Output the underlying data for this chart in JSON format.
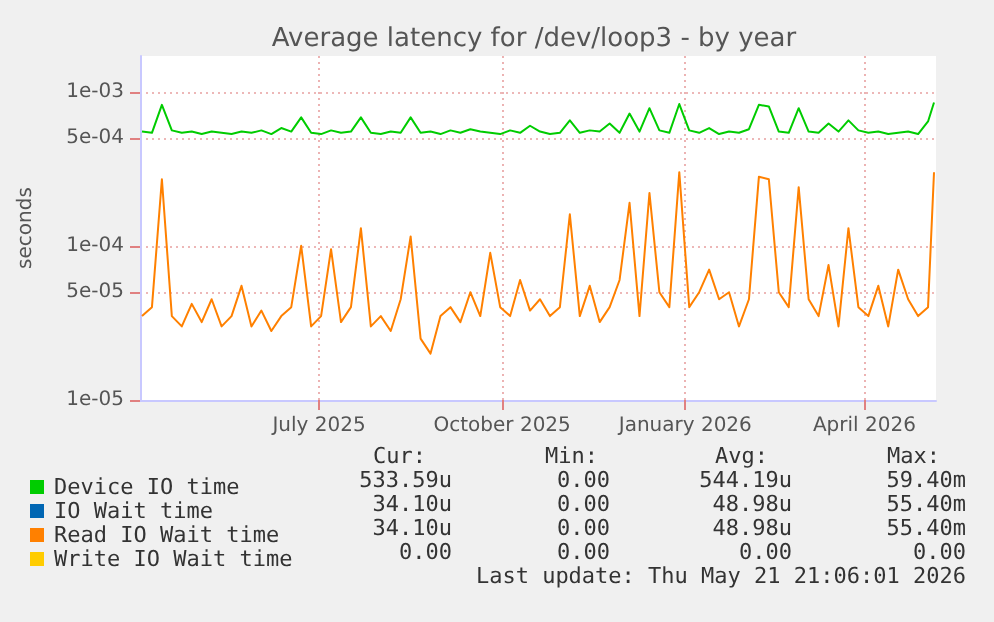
{
  "chart_data": {
    "type": "line",
    "title": "Average latency for /dev/loop3 - by year",
    "ylabel": "seconds",
    "x": [
      "2025-04-18",
      "2025-04-23",
      "2025-04-28",
      "2025-05-03",
      "2025-05-08",
      "2025-05-13",
      "2025-05-18",
      "2025-05-23",
      "2025-05-28",
      "2025-06-02",
      "2025-06-07",
      "2025-06-12",
      "2025-06-17",
      "2025-06-22",
      "2025-06-27",
      "2025-07-02",
      "2025-07-07",
      "2025-07-12",
      "2025-07-17",
      "2025-07-22",
      "2025-07-27",
      "2025-08-01",
      "2025-08-06",
      "2025-08-11",
      "2025-08-16",
      "2025-08-21",
      "2025-08-26",
      "2025-08-31",
      "2025-09-05",
      "2025-09-10",
      "2025-09-15",
      "2025-09-20",
      "2025-09-25",
      "2025-09-30",
      "2025-10-05",
      "2025-10-10",
      "2025-10-15",
      "2025-10-20",
      "2025-10-25",
      "2025-10-30",
      "2025-11-04",
      "2025-11-09",
      "2025-11-14",
      "2025-11-19",
      "2025-11-24",
      "2025-11-29",
      "2025-12-04",
      "2025-12-09",
      "2025-12-14",
      "2025-12-19",
      "2025-12-24",
      "2025-12-29",
      "2026-01-03",
      "2026-01-08",
      "2026-01-13",
      "2026-01-18",
      "2026-01-23",
      "2026-01-28",
      "2026-02-02",
      "2026-02-07",
      "2026-02-12",
      "2026-02-17",
      "2026-02-22",
      "2026-02-27",
      "2026-03-04",
      "2026-03-09",
      "2026-03-14",
      "2026-03-19",
      "2026-03-24",
      "2026-03-29",
      "2026-04-03",
      "2026-04-08",
      "2026-04-13",
      "2026-04-18",
      "2026-04-23",
      "2026-04-28",
      "2026-05-03",
      "2026-05-08",
      "2026-05-13",
      "2026-05-18",
      "2026-05-21"
    ],
    "series": [
      {
        "name": "Device IO time",
        "color": "#00cc00",
        "values": [
          0.00055,
          0.00054,
          0.00082,
          0.00056,
          0.00054,
          0.00055,
          0.00053,
          0.00055,
          0.00054,
          0.00053,
          0.00055,
          0.00054,
          0.00056,
          0.00053,
          0.00058,
          0.00055,
          0.00068,
          0.00054,
          0.00053,
          0.00056,
          0.00054,
          0.00055,
          0.00068,
          0.00054,
          0.00053,
          0.00055,
          0.00054,
          0.00068,
          0.00054,
          0.00055,
          0.00053,
          0.00056,
          0.00054,
          0.00057,
          0.00055,
          0.00054,
          0.00053,
          0.00056,
          0.00054,
          0.0006,
          0.00055,
          0.00053,
          0.00054,
          0.00065,
          0.00054,
          0.00056,
          0.00055,
          0.00062,
          0.00054,
          0.00072,
          0.00055,
          0.00078,
          0.00056,
          0.00054,
          0.00083,
          0.00056,
          0.00054,
          0.00058,
          0.00053,
          0.00055,
          0.00054,
          0.00057,
          0.00082,
          0.0008,
          0.00055,
          0.00054,
          0.00078,
          0.00055,
          0.00054,
          0.00062,
          0.00055,
          0.00065,
          0.00056,
          0.00054,
          0.00055,
          0.00053,
          0.00054,
          0.00055,
          0.00053,
          0.00064,
          0.00085
        ]
      },
      {
        "name": "IO Wait time",
        "color": "#0066b3",
        "values": [
          null,
          null,
          null,
          null,
          null,
          null,
          null,
          null,
          null,
          null,
          null,
          null,
          null,
          null,
          null,
          null,
          null,
          null,
          null,
          null,
          null,
          null,
          null,
          null,
          null,
          null,
          null,
          null,
          null,
          null,
          null,
          null,
          null,
          null,
          null,
          null,
          null,
          null,
          null,
          null,
          null,
          null,
          null,
          null,
          null,
          null,
          null,
          null,
          null,
          null,
          null,
          null,
          null,
          null,
          null,
          null,
          null,
          null,
          null,
          null,
          null,
          null,
          null,
          null,
          null,
          null,
          null,
          null,
          null,
          null,
          null,
          null,
          null,
          null,
          null,
          null,
          null,
          null,
          null,
          null,
          null
        ]
      },
      {
        "name": "Read IO Wait time",
        "color": "#ff8000",
        "values": [
          3.5e-05,
          4e-05,
          0.00027,
          3.5e-05,
          3e-05,
          4.2e-05,
          3.2e-05,
          4.5e-05,
          3e-05,
          3.5e-05,
          5.5e-05,
          3e-05,
          3.8e-05,
          2.8e-05,
          3.5e-05,
          4e-05,
          0.0001,
          3e-05,
          3.5e-05,
          9.5e-05,
          3.2e-05,
          4e-05,
          0.00013,
          3e-05,
          3.5e-05,
          2.8e-05,
          4.5e-05,
          0.000115,
          2.5e-05,
          2e-05,
          3.5e-05,
          4e-05,
          3.2e-05,
          5e-05,
          3.5e-05,
          9e-05,
          4e-05,
          3.5e-05,
          6e-05,
          3.8e-05,
          4.5e-05,
          3.5e-05,
          4e-05,
          0.00016,
          3.5e-05,
          5.5e-05,
          3.2e-05,
          4e-05,
          6e-05,
          0.00019,
          3.5e-05,
          0.00022,
          5e-05,
          4e-05,
          0.0003,
          4e-05,
          5e-05,
          7e-05,
          4.5e-05,
          5e-05,
          3e-05,
          4.5e-05,
          0.00028,
          0.00027,
          5e-05,
          4e-05,
          0.00024,
          4.5e-05,
          3.5e-05,
          7.5e-05,
          3e-05,
          0.00013,
          4e-05,
          3.5e-05,
          5.5e-05,
          3e-05,
          7e-05,
          4.5e-05,
          3.5e-05,
          4e-05,
          0.0003
        ]
      },
      {
        "name": "Write IO Wait time",
        "color": "#ffcc00",
        "values": [
          null,
          null,
          null,
          null,
          null,
          null,
          null,
          null,
          null,
          null,
          null,
          null,
          null,
          null,
          null,
          null,
          null,
          null,
          null,
          null,
          null,
          null,
          null,
          null,
          null,
          null,
          null,
          null,
          null,
          null,
          null,
          null,
          null,
          null,
          null,
          null,
          null,
          null,
          null,
          null,
          null,
          null,
          null,
          null,
          null,
          null,
          null,
          null,
          null,
          null,
          null,
          null,
          null,
          null,
          null,
          null,
          null,
          null,
          null,
          null,
          null,
          null,
          null,
          null,
          null,
          null,
          null,
          null,
          null,
          null,
          null,
          null,
          null,
          null,
          null,
          null,
          null,
          null,
          null,
          null,
          null
        ]
      }
    ],
    "log": "y",
    "ylim": [
      1e-05,
      0.0017
    ],
    "yticks": [
      {
        "value": 1e-05,
        "label": "1e-05"
      },
      {
        "value": 5e-05,
        "label": "5e-05"
      },
      {
        "value": 0.0001,
        "label": "1e-04"
      },
      {
        "value": 0.0005,
        "label": "5e-04"
      },
      {
        "value": 0.001,
        "label": "1e-03"
      }
    ],
    "xlim": [
      "2025-04-17",
      "2026-05-22"
    ],
    "xticks": [
      {
        "value": "2025-07-16",
        "label": "July 2025"
      },
      {
        "value": "2025-10-16",
        "label": "October 2025"
      },
      {
        "value": "2026-01-16",
        "label": "January 2026"
      },
      {
        "value": "2026-04-16",
        "label": "April 2026"
      }
    ],
    "grid": true,
    "legend": "bottom left",
    "annotations": [
      "Cur:",
      "Min:",
      "Avg:",
      "Max:",
      "533.59u",
      "0.00",
      "544.19u",
      "59.40m",
      "34.10u",
      "0.00",
      "48.98u",
      "55.40m",
      "34.10u",
      "0.00",
      "48.98u",
      "55.40m",
      "0.00",
      "0.00",
      "0.00",
      "0.00",
      "Last update: Thu May 21 21:06:01 2026"
    ]
  }
}
